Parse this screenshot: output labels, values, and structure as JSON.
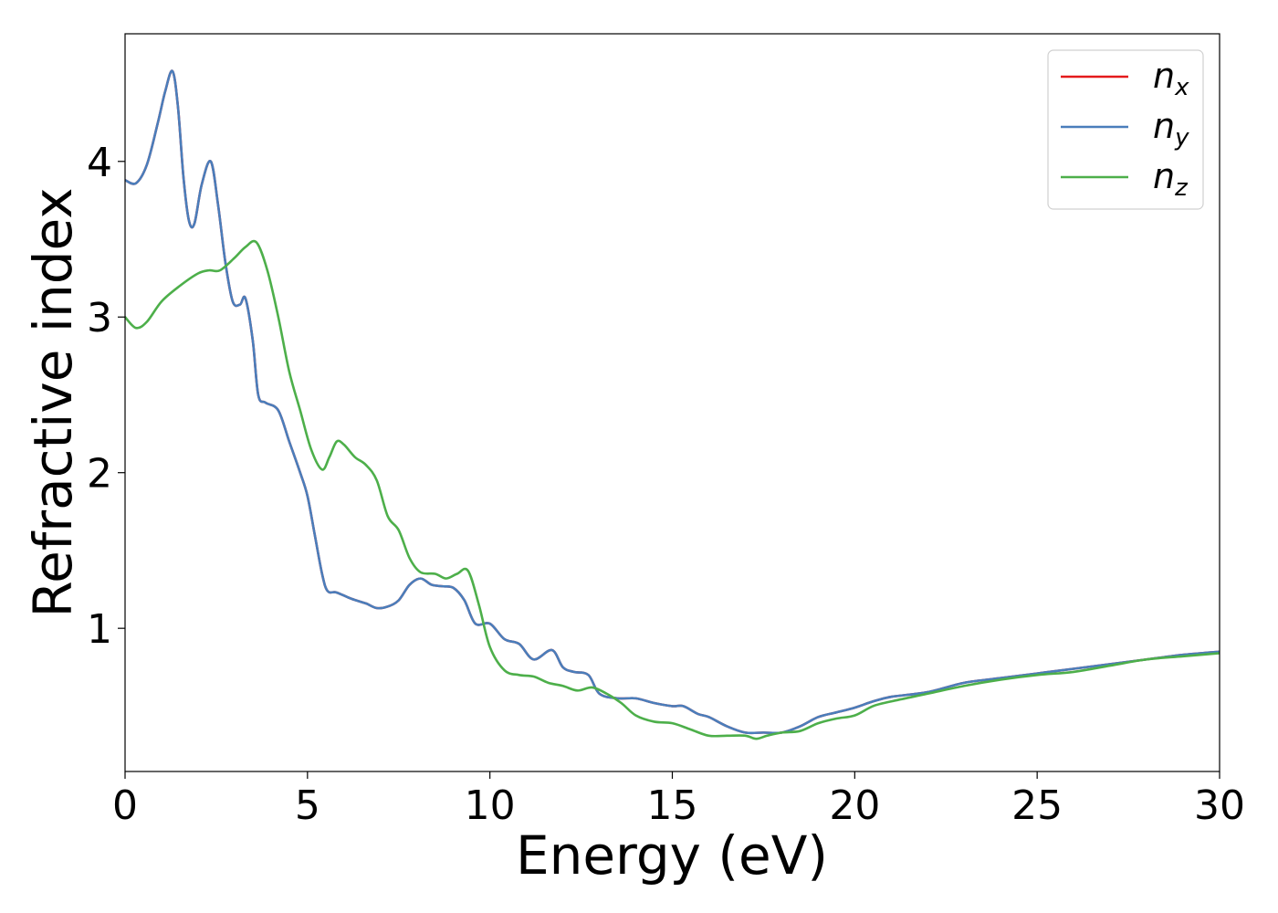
{
  "chart_data": {
    "type": "line",
    "xlabel": "Energy (eV)",
    "ylabel": "Refractive index",
    "xlim": [
      0,
      30
    ],
    "ylim": [
      0.08,
      4.82
    ],
    "xticks": [
      0,
      5,
      10,
      15,
      20,
      25,
      30
    ],
    "yticks": [
      1,
      2,
      3,
      4
    ],
    "grid": false,
    "legend_position": "upper-right",
    "series": [
      {
        "name": "n_x",
        "label_main": "n",
        "label_sub": "x",
        "color": "#e41a1c",
        "x": [
          0,
          0.3,
          0.6,
          0.9,
          1.1,
          1.3,
          1.45,
          1.6,
          1.75,
          1.9,
          2.1,
          2.35,
          2.55,
          2.75,
          2.95,
          3.15,
          3.3,
          3.5,
          3.65,
          3.85,
          4.2,
          4.5,
          4.8,
          5.0,
          5.2,
          5.4,
          5.55,
          5.8,
          6.2,
          6.6,
          6.9,
          7.2,
          7.5,
          7.8,
          8.1,
          8.4,
          8.7,
          9.0,
          9.3,
          9.6,
          10.0,
          10.4,
          10.8,
          11.2,
          11.7,
          12.0,
          12.3,
          12.7,
          13.0,
          13.5,
          14.0,
          14.5,
          15.0,
          15.3,
          15.7,
          16.0,
          16.5,
          17.0,
          17.5,
          18.0,
          18.5,
          19.0,
          19.5,
          20.0,
          20.5,
          21.0,
          22.0,
          23.0,
          24.0,
          25.0,
          26.0,
          27.0,
          28.0,
          29.0,
          30.0
        ],
        "y": [
          3.88,
          3.86,
          3.98,
          4.25,
          4.45,
          4.58,
          4.35,
          3.9,
          3.62,
          3.6,
          3.85,
          4.0,
          3.72,
          3.35,
          3.1,
          3.08,
          3.12,
          2.85,
          2.5,
          2.45,
          2.4,
          2.2,
          2.0,
          1.85,
          1.6,
          1.35,
          1.24,
          1.23,
          1.19,
          1.16,
          1.13,
          1.14,
          1.18,
          1.28,
          1.32,
          1.28,
          1.27,
          1.26,
          1.18,
          1.03,
          1.03,
          0.93,
          0.9,
          0.8,
          0.86,
          0.75,
          0.72,
          0.7,
          0.58,
          0.55,
          0.55,
          0.52,
          0.5,
          0.5,
          0.45,
          0.43,
          0.37,
          0.33,
          0.33,
          0.33,
          0.37,
          0.43,
          0.46,
          0.49,
          0.53,
          0.56,
          0.59,
          0.65,
          0.68,
          0.71,
          0.74,
          0.77,
          0.8,
          0.83,
          0.85
        ]
      },
      {
        "name": "n_y",
        "label_main": "n",
        "label_sub": "y",
        "color": "#4a7ebb",
        "x": [
          0,
          0.3,
          0.6,
          0.9,
          1.1,
          1.3,
          1.45,
          1.6,
          1.75,
          1.9,
          2.1,
          2.35,
          2.55,
          2.75,
          2.95,
          3.15,
          3.3,
          3.5,
          3.65,
          3.85,
          4.2,
          4.5,
          4.8,
          5.0,
          5.2,
          5.4,
          5.55,
          5.8,
          6.2,
          6.6,
          6.9,
          7.2,
          7.5,
          7.8,
          8.1,
          8.4,
          8.7,
          9.0,
          9.3,
          9.6,
          10.0,
          10.4,
          10.8,
          11.2,
          11.7,
          12.0,
          12.3,
          12.7,
          13.0,
          13.5,
          14.0,
          14.5,
          15.0,
          15.3,
          15.7,
          16.0,
          16.5,
          17.0,
          17.5,
          18.0,
          18.5,
          19.0,
          19.5,
          20.0,
          20.5,
          21.0,
          22.0,
          23.0,
          24.0,
          25.0,
          26.0,
          27.0,
          28.0,
          29.0,
          30.0
        ],
        "y": [
          3.88,
          3.86,
          3.98,
          4.25,
          4.45,
          4.58,
          4.35,
          3.9,
          3.62,
          3.6,
          3.85,
          4.0,
          3.72,
          3.35,
          3.1,
          3.08,
          3.12,
          2.85,
          2.5,
          2.45,
          2.4,
          2.2,
          2.0,
          1.85,
          1.6,
          1.35,
          1.24,
          1.23,
          1.19,
          1.16,
          1.13,
          1.14,
          1.18,
          1.28,
          1.32,
          1.28,
          1.27,
          1.26,
          1.18,
          1.03,
          1.03,
          0.93,
          0.9,
          0.8,
          0.86,
          0.75,
          0.72,
          0.7,
          0.58,
          0.55,
          0.55,
          0.52,
          0.5,
          0.5,
          0.45,
          0.43,
          0.37,
          0.33,
          0.33,
          0.33,
          0.37,
          0.43,
          0.46,
          0.49,
          0.53,
          0.56,
          0.59,
          0.65,
          0.68,
          0.71,
          0.74,
          0.77,
          0.8,
          0.83,
          0.85
        ]
      },
      {
        "name": "n_z",
        "label_main": "n",
        "label_sub": "z",
        "color": "#4daf4a",
        "x": [
          0,
          0.3,
          0.6,
          1.0,
          1.5,
          2.0,
          2.3,
          2.6,
          3.0,
          3.3,
          3.6,
          3.9,
          4.2,
          4.5,
          4.8,
          5.1,
          5.4,
          5.6,
          5.8,
          6.0,
          6.3,
          6.6,
          6.9,
          7.2,
          7.5,
          7.8,
          8.1,
          8.5,
          8.8,
          9.1,
          9.4,
          9.7,
          10.0,
          10.4,
          10.8,
          11.2,
          11.6,
          12.0,
          12.4,
          12.8,
          13.2,
          13.6,
          14.0,
          14.5,
          15.0,
          15.5,
          16.0,
          16.5,
          17.0,
          17.3,
          17.6,
          18.0,
          18.5,
          19.0,
          19.5,
          20.0,
          20.5,
          21.0,
          22.0,
          23.0,
          24.0,
          25.0,
          26.0,
          27.0,
          28.0,
          29.0,
          30.0
        ],
        "y": [
          3.0,
          2.93,
          2.97,
          3.1,
          3.2,
          3.28,
          3.3,
          3.3,
          3.38,
          3.45,
          3.48,
          3.3,
          3.0,
          2.65,
          2.4,
          2.15,
          2.02,
          2.1,
          2.2,
          2.18,
          2.1,
          2.05,
          1.95,
          1.72,
          1.63,
          1.45,
          1.36,
          1.35,
          1.32,
          1.35,
          1.37,
          1.15,
          0.88,
          0.73,
          0.7,
          0.69,
          0.65,
          0.63,
          0.6,
          0.62,
          0.58,
          0.52,
          0.44,
          0.4,
          0.39,
          0.35,
          0.31,
          0.31,
          0.31,
          0.29,
          0.31,
          0.33,
          0.34,
          0.39,
          0.42,
          0.44,
          0.5,
          0.53,
          0.58,
          0.63,
          0.67,
          0.7,
          0.72,
          0.76,
          0.8,
          0.82,
          0.84
        ]
      }
    ]
  }
}
